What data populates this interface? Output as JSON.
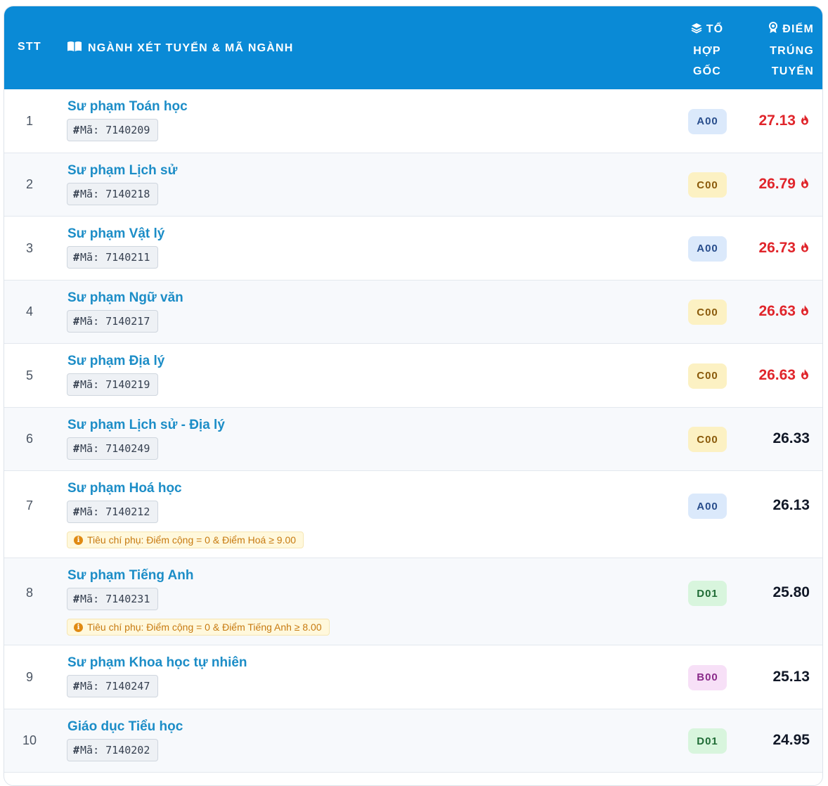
{
  "header": {
    "stt": "STT",
    "nganh": "NGÀNH XÉT TUYỂN & MÃ NGÀNH",
    "tohop_lines": [
      "TỔ",
      "HỢP",
      "GỐC"
    ],
    "diem_lines": [
      "ĐIỂM",
      "TRÚNG",
      "TUYỂN"
    ],
    "nganh_icon": "book-open-icon",
    "tohop_icon": "layers-icon",
    "diem_icon": "award-icon"
  },
  "colors": {
    "header_bg": "#0a8ad6",
    "name_link": "#1c8dc7",
    "hot_score": "#e0252b"
  },
  "rows": [
    {
      "stt": "1",
      "name": "Sư phạm Toán học",
      "code": "Mã: 7140209",
      "group": "A00",
      "score": "27.13",
      "hot": true,
      "note": ""
    },
    {
      "stt": "2",
      "name": "Sư phạm Lịch sử",
      "code": "Mã: 7140218",
      "group": "C00",
      "score": "26.79",
      "hot": true,
      "note": ""
    },
    {
      "stt": "3",
      "name": "Sư phạm Vật lý",
      "code": "Mã: 7140211",
      "group": "A00",
      "score": "26.73",
      "hot": true,
      "note": ""
    },
    {
      "stt": "4",
      "name": "Sư phạm Ngữ văn",
      "code": "Mã: 7140217",
      "group": "C00",
      "score": "26.63",
      "hot": true,
      "note": ""
    },
    {
      "stt": "5",
      "name": "Sư phạm Địa lý",
      "code": "Mã: 7140219",
      "group": "C00",
      "score": "26.63",
      "hot": true,
      "note": ""
    },
    {
      "stt": "6",
      "name": "Sư phạm Lịch sử - Địa lý",
      "code": "Mã: 7140249",
      "group": "C00",
      "score": "26.33",
      "hot": false,
      "note": ""
    },
    {
      "stt": "7",
      "name": "Sư phạm Hoá học",
      "code": "Mã: 7140212",
      "group": "A00",
      "score": "26.13",
      "hot": false,
      "note": "Tiêu chí phụ: Điểm cộng = 0 & Điểm Hoá ≥ 9.00"
    },
    {
      "stt": "8",
      "name": "Sư phạm Tiếng Anh",
      "code": "Mã: 7140231",
      "group": "D01",
      "score": "25.80",
      "hot": false,
      "note": "Tiêu chí phụ: Điểm cộng = 0 & Điểm Tiếng Anh ≥ 8.00"
    },
    {
      "stt": "9",
      "name": "Sư phạm Khoa học tự nhiên",
      "code": "Mã: 7140247",
      "group": "B00",
      "score": "25.13",
      "hot": false,
      "note": ""
    },
    {
      "stt": "10",
      "name": "Giáo dục Tiểu học",
      "code": "Mã: 7140202",
      "group": "D01",
      "score": "24.95",
      "hot": false,
      "note": ""
    }
  ]
}
